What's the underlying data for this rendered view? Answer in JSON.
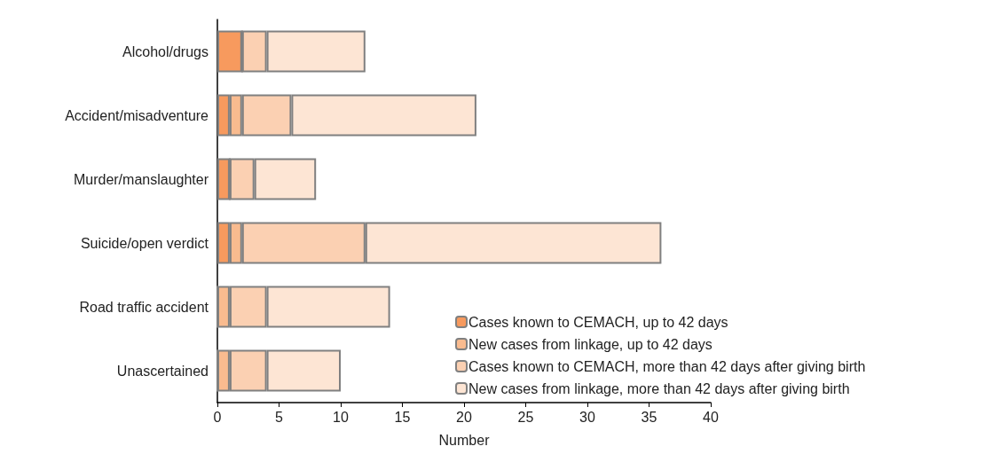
{
  "chart_data": {
    "type": "bar",
    "orientation": "horizontal",
    "stacked": true,
    "xlabel": "Number",
    "categories": [
      "Alcohol/drugs",
      "Accident/misadventure",
      "Murder/manslaughter",
      "Suicide/open verdict",
      "Road traffic accident",
      "Unascertained"
    ],
    "series": [
      {
        "name": "Cases known to CEMACH, up to 42 days",
        "color": "#f79a5e",
        "values": [
          2,
          1,
          1,
          1,
          0,
          0
        ]
      },
      {
        "name": "New cases from linkage, up to 42 days",
        "color": "#f9bb8f",
        "values": [
          0,
          1,
          0,
          1,
          1,
          1
        ]
      },
      {
        "name": "Cases known to CEMACH, more than 42 days after giving birth",
        "color": "#fbd0b2",
        "values": [
          2,
          4,
          2,
          10,
          3,
          3
        ]
      },
      {
        "name": "New cases from linkage, more than 42 days after giving birth",
        "color": "#fde5d4",
        "values": [
          8,
          15,
          5,
          24,
          10,
          6
        ]
      }
    ],
    "xlim": [
      0,
      40
    ],
    "xticks": [
      0,
      5,
      10,
      15,
      20,
      25,
      30,
      35,
      40
    ],
    "grid": false,
    "legend": "bottom right"
  }
}
